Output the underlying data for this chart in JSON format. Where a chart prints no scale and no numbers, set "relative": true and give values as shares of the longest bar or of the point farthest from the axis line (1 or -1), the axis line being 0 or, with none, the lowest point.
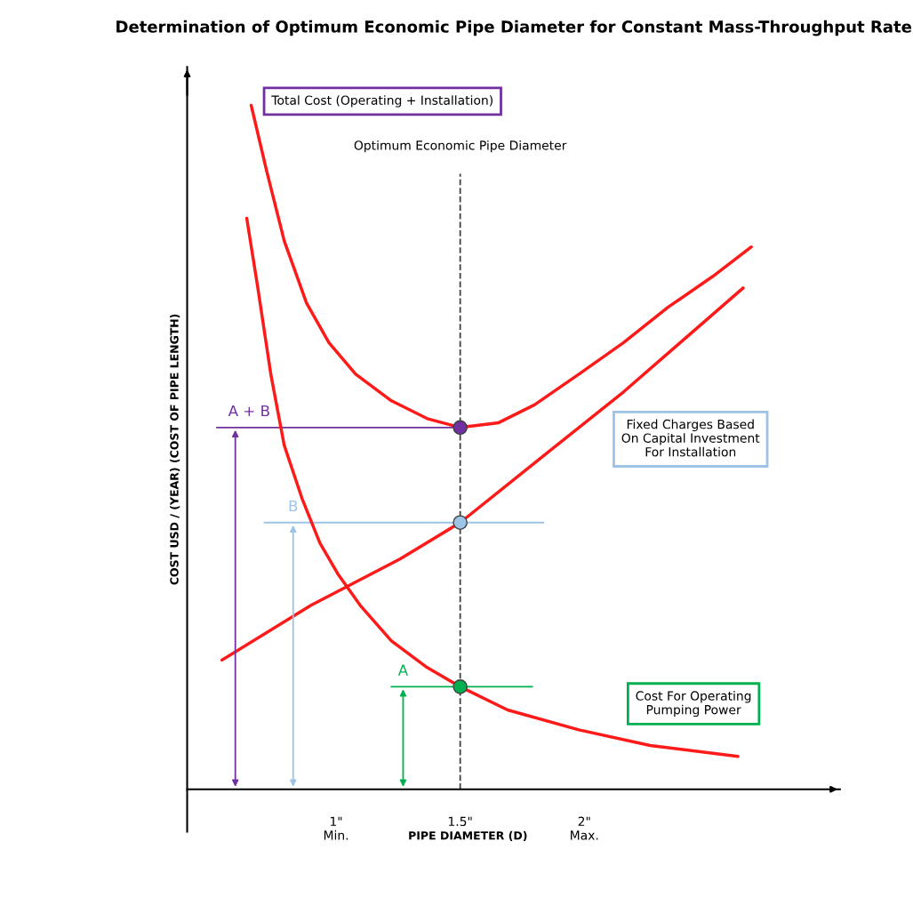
{
  "chart_data": {
    "type": "line",
    "title": "Determination of Optimum Economic Pipe Diameter for Constant Mass-Throughput Rate",
    "xlabel": "PIPE DIAMETER (D)",
    "ylabel": "COST USD / (YEAR) (COST OF PIPE LENGTH)",
    "relative": true,
    "xlim": [
      0.4,
      3.03
    ],
    "xticks": [
      {
        "value": 1,
        "label": "1\"\nMin."
      },
      {
        "value": 1.5,
        "label": "1.5\""
      },
      {
        "value": 2,
        "label": "2\"\nMax."
      }
    ],
    "tick_labels": "x",
    "grid": false,
    "legend": false,
    "marker": "none",
    "line_style": "solid",
    "series": [
      {
        "name": "Total Cost (Operating + Installation)",
        "color": "#ff1a1a",
        "x": [
          0.658,
          0.719,
          0.791,
          0.881,
          0.971,
          1.079,
          1.223,
          1.367,
          1.5,
          1.655,
          1.799,
          1.978,
          2.158,
          2.338,
          2.518,
          2.673
        ],
        "values": [
          1.0,
          0.906,
          0.802,
          0.711,
          0.653,
          0.607,
          0.568,
          0.542,
          0.529,
          0.536,
          0.562,
          0.607,
          0.653,
          0.705,
          0.75,
          0.793
        ]
      },
      {
        "name": "Fixed Charges Based\nOn Capital Investment\nFor Installation",
        "color": "#ff1a1a",
        "x": [
          0.54,
          0.899,
          1.259,
          1.5,
          1.799,
          2.158,
          2.64
        ],
        "values": [
          0.189,
          0.269,
          0.337,
          0.39,
          0.477,
          0.581,
          0.733
        ]
      },
      {
        "name": "Cost For Operating\nPumping Power",
        "color": "#ff1a1a",
        "x": [
          0.64,
          0.683,
          0.737,
          0.791,
          0.863,
          0.935,
          1.007,
          1.097,
          1.223,
          1.367,
          1.5,
          1.691,
          1.978,
          2.266,
          2.619
        ],
        "values": [
          0.835,
          0.737,
          0.607,
          0.503,
          0.425,
          0.36,
          0.315,
          0.269,
          0.217,
          0.178,
          0.15,
          0.116,
          0.087,
          0.064,
          0.048
        ]
      },
      {
        "type": "scatter",
        "marker": "circle",
        "x": [
          1.5,
          1.5,
          1.5
        ],
        "values": [
          0.529,
          0.39,
          0.15
        ],
        "colors": [
          "#7030a0",
          "#9dc3e6",
          "#00b050"
        ]
      }
    ],
    "ref_lines": [
      {
        "axis": "x",
        "value": 1.5,
        "label": "Optimum Economic Pipe Diameter",
        "color": "#404040",
        "line_style": "dashed"
      },
      {
        "axis": "y",
        "value": 0.529,
        "label": "A + B",
        "color": "#7030a0"
      },
      {
        "axis": "y",
        "value": 0.39,
        "label": "B",
        "color": "#9dc3e6"
      },
      {
        "axis": "y",
        "value": 0.15,
        "label": "A",
        "color": "#00b050"
      }
    ]
  }
}
